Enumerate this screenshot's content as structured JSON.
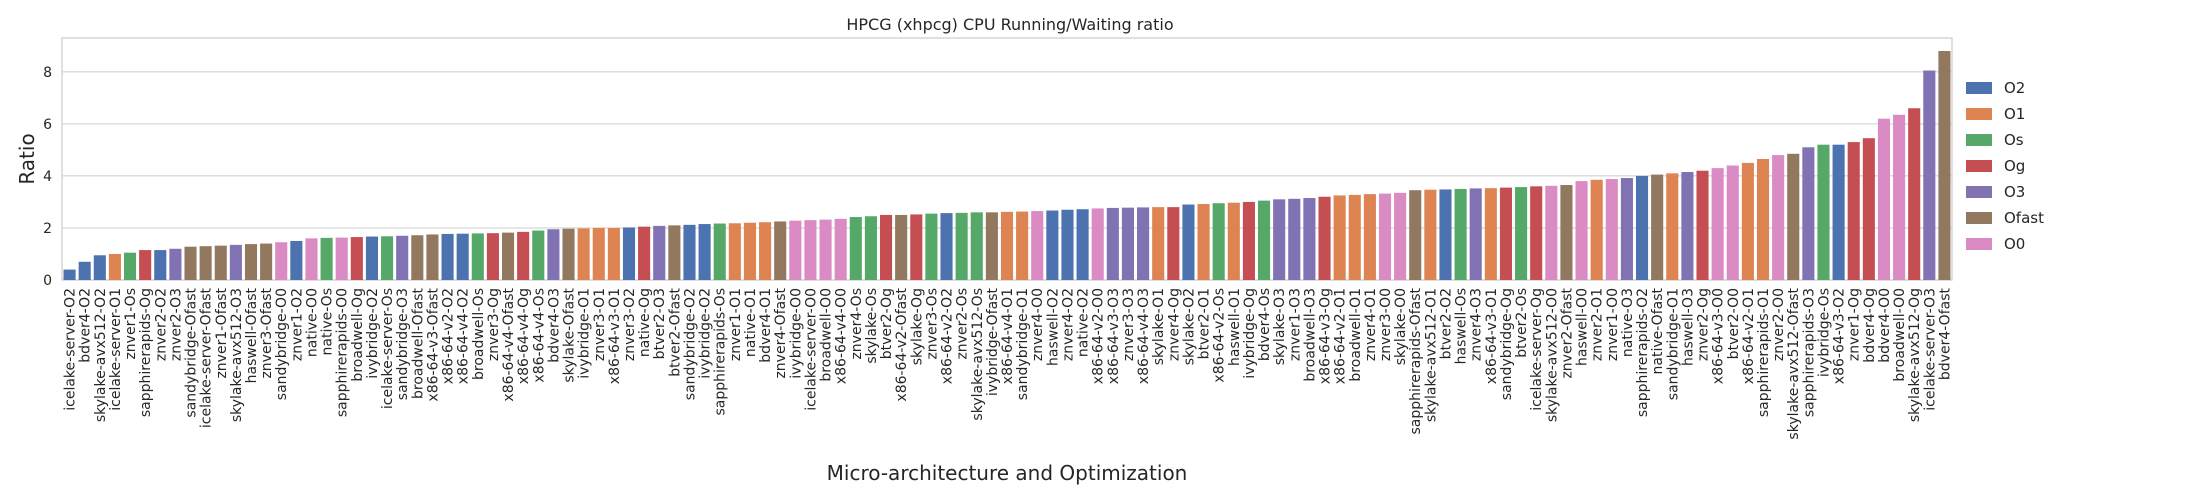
{
  "chart_data": {
    "type": "bar",
    "title": "HPCG (xhpcg) CPU Running/Waiting ratio",
    "xlabel": "Micro-architecture and Optimization",
    "ylabel": "Ratio",
    "ylim": [
      0,
      9.3
    ],
    "yticks": [
      0,
      2,
      4,
      6,
      8
    ],
    "grid": true,
    "legend_position": "right",
    "legend": [
      {
        "name": "O2",
        "color": "#4c72b0"
      },
      {
        "name": "O1",
        "color": "#dd8452"
      },
      {
        "name": "Os",
        "color": "#55a868"
      },
      {
        "name": "Og",
        "color": "#c44e52"
      },
      {
        "name": "O3",
        "color": "#8172b3"
      },
      {
        "name": "Ofast",
        "color": "#937860"
      },
      {
        "name": "O0",
        "color": "#da8bc3"
      }
    ],
    "bars": [
      {
        "label": "icelake-server-O2",
        "opt": "O2",
        "value": 0.4
      },
      {
        "label": "bdver4-O2",
        "opt": "O2",
        "value": 0.7
      },
      {
        "label": "skylake-avx512-O2",
        "opt": "O2",
        "value": 0.95
      },
      {
        "label": "icelake-server-O1",
        "opt": "O1",
        "value": 1.0
      },
      {
        "label": "znver1-Os",
        "opt": "Os",
        "value": 1.05
      },
      {
        "label": "sapphirerapids-Og",
        "opt": "Og",
        "value": 1.15
      },
      {
        "label": "znver2-O2",
        "opt": "O2",
        "value": 1.15
      },
      {
        "label": "znver2-O3",
        "opt": "O3",
        "value": 1.2
      },
      {
        "label": "sandybridge-Ofast",
        "opt": "Ofast",
        "value": 1.28
      },
      {
        "label": "icelake-server-Ofast",
        "opt": "Ofast",
        "value": 1.3
      },
      {
        "label": "znver1-Ofast",
        "opt": "Ofast",
        "value": 1.32
      },
      {
        "label": "skylake-avx512-O3",
        "opt": "O3",
        "value": 1.35
      },
      {
        "label": "haswell-Ofast",
        "opt": "Ofast",
        "value": 1.38
      },
      {
        "label": "znver3-Ofast",
        "opt": "Ofast",
        "value": 1.4
      },
      {
        "label": "sandybridge-O0",
        "opt": "O0",
        "value": 1.45
      },
      {
        "label": "znver1-O2",
        "opt": "O2",
        "value": 1.5
      },
      {
        "label": "native-O0",
        "opt": "O0",
        "value": 1.6
      },
      {
        "label": "native-Os",
        "opt": "Os",
        "value": 1.62
      },
      {
        "label": "sapphirerapids-O0",
        "opt": "O0",
        "value": 1.63
      },
      {
        "label": "broadwell-Og",
        "opt": "Og",
        "value": 1.65
      },
      {
        "label": "ivybridge-O2",
        "opt": "O2",
        "value": 1.67
      },
      {
        "label": "icelake-server-Os",
        "opt": "Os",
        "value": 1.68
      },
      {
        "label": "sandybridge-O3",
        "opt": "O3",
        "value": 1.7
      },
      {
        "label": "broadwell-Ofast",
        "opt": "Ofast",
        "value": 1.72
      },
      {
        "label": "x86-64-v3-Ofast",
        "opt": "Ofast",
        "value": 1.75
      },
      {
        "label": "x86-64-v2-O2",
        "opt": "O2",
        "value": 1.77
      },
      {
        "label": "x86-64-v4-O2",
        "opt": "O2",
        "value": 1.78
      },
      {
        "label": "broadwell-Os",
        "opt": "Os",
        "value": 1.79
      },
      {
        "label": "znver3-Og",
        "opt": "Og",
        "value": 1.8
      },
      {
        "label": "x86-64-v4-Ofast",
        "opt": "Ofast",
        "value": 1.82
      },
      {
        "label": "x86-64-v4-Og",
        "opt": "Og",
        "value": 1.85
      },
      {
        "label": "x86-64-v4-Os",
        "opt": "Os",
        "value": 1.9
      },
      {
        "label": "bdver4-O3",
        "opt": "O3",
        "value": 1.95
      },
      {
        "label": "skylake-Ofast",
        "opt": "Ofast",
        "value": 1.97
      },
      {
        "label": "ivybridge-O1",
        "opt": "O1",
        "value": 1.98
      },
      {
        "label": "znver3-O1",
        "opt": "O1",
        "value": 2.0
      },
      {
        "label": "x86-64-v3-O1",
        "opt": "O1",
        "value": 2.0
      },
      {
        "label": "znver3-O2",
        "opt": "O2",
        "value": 2.02
      },
      {
        "label": "native-Og",
        "opt": "Og",
        "value": 2.05
      },
      {
        "label": "btver2-O3",
        "opt": "O3",
        "value": 2.08
      },
      {
        "label": "btver2-Ofast",
        "opt": "Ofast",
        "value": 2.1
      },
      {
        "label": "sandybridge-O2",
        "opt": "O2",
        "value": 2.12
      },
      {
        "label": "ivybridge-O2",
        "opt": "O2",
        "value": 2.15
      },
      {
        "label": "sapphirerapids-Os",
        "opt": "Os",
        "value": 2.17
      },
      {
        "label": "znver1-O1",
        "opt": "O1",
        "value": 2.18
      },
      {
        "label": "native-O1",
        "opt": "O1",
        "value": 2.2
      },
      {
        "label": "bdver4-O1",
        "opt": "O1",
        "value": 2.22
      },
      {
        "label": "znver4-Ofast",
        "opt": "Ofast",
        "value": 2.25
      },
      {
        "label": "ivybridge-O0",
        "opt": "O0",
        "value": 2.28
      },
      {
        "label": "icelake-server-O0",
        "opt": "O0",
        "value": 2.3
      },
      {
        "label": "broadwell-O0",
        "opt": "O0",
        "value": 2.32
      },
      {
        "label": "x86-64-v4-O0",
        "opt": "O0",
        "value": 2.35
      },
      {
        "label": "znver4-Os",
        "opt": "Os",
        "value": 2.42
      },
      {
        "label": "skylake-Os",
        "opt": "Os",
        "value": 2.45
      },
      {
        "label": "btver2-Og",
        "opt": "Og",
        "value": 2.5
      },
      {
        "label": "x86-64-v2-Ofast",
        "opt": "Ofast",
        "value": 2.5
      },
      {
        "label": "skylake-Og",
        "opt": "Og",
        "value": 2.52
      },
      {
        "label": "znver3-Os",
        "opt": "Os",
        "value": 2.55
      },
      {
        "label": "x86-64-v2-O2",
        "opt": "O2",
        "value": 2.57
      },
      {
        "label": "znver2-Os",
        "opt": "Os",
        "value": 2.58
      },
      {
        "label": "skylake-avx512-Os",
        "opt": "Os",
        "value": 2.6
      },
      {
        "label": "ivybridge-Ofast",
        "opt": "Ofast",
        "value": 2.6
      },
      {
        "label": "x86-64-v4-O1",
        "opt": "O1",
        "value": 2.62
      },
      {
        "label": "sandybridge-O1",
        "opt": "O1",
        "value": 2.63
      },
      {
        "label": "znver4-O0",
        "opt": "O0",
        "value": 2.65
      },
      {
        "label": "haswell-O2",
        "opt": "O2",
        "value": 2.67
      },
      {
        "label": "znver4-O2",
        "opt": "O2",
        "value": 2.7
      },
      {
        "label": "native-O2",
        "opt": "O2",
        "value": 2.72
      },
      {
        "label": "x86-64-v2-O0",
        "opt": "O0",
        "value": 2.75
      },
      {
        "label": "x86-64-v3-O3",
        "opt": "O3",
        "value": 2.77
      },
      {
        "label": "znver3-O3",
        "opt": "O3",
        "value": 2.78
      },
      {
        "label": "x86-64-v4-O3",
        "opt": "O3",
        "value": 2.79
      },
      {
        "label": "skylake-O1",
        "opt": "O1",
        "value": 2.8
      },
      {
        "label": "znver4-Og",
        "opt": "Og",
        "value": 2.8
      },
      {
        "label": "skylake-O2",
        "opt": "O2",
        "value": 2.9
      },
      {
        "label": "btver2-O1",
        "opt": "O1",
        "value": 2.92
      },
      {
        "label": "x86-64-v2-Os",
        "opt": "Os",
        "value": 2.95
      },
      {
        "label": "haswell-O1",
        "opt": "O1",
        "value": 2.97
      },
      {
        "label": "ivybridge-Og",
        "opt": "Og",
        "value": 3.0
      },
      {
        "label": "bdver4-Os",
        "opt": "Os",
        "value": 3.05
      },
      {
        "label": "skylake-O3",
        "opt": "O3",
        "value": 3.1
      },
      {
        "label": "znver1-O3",
        "opt": "O3",
        "value": 3.12
      },
      {
        "label": "broadwell-O3",
        "opt": "O3",
        "value": 3.15
      },
      {
        "label": "x86-64-v3-Og",
        "opt": "Og",
        "value": 3.2
      },
      {
        "label": "x86-64-v2-O1",
        "opt": "O1",
        "value": 3.25
      },
      {
        "label": "broadwell-O1",
        "opt": "O1",
        "value": 3.27
      },
      {
        "label": "znver4-O1",
        "opt": "O1",
        "value": 3.3
      },
      {
        "label": "znver3-O0",
        "opt": "O0",
        "value": 3.32
      },
      {
        "label": "skylake-O0",
        "opt": "O0",
        "value": 3.35
      },
      {
        "label": "sapphirerapids-Ofast",
        "opt": "Ofast",
        "value": 3.45
      },
      {
        "label": "skylake-avx512-O1",
        "opt": "O1",
        "value": 3.47
      },
      {
        "label": "btver2-O2",
        "opt": "O2",
        "value": 3.48
      },
      {
        "label": "haswell-Os",
        "opt": "Os",
        "value": 3.5
      },
      {
        "label": "znver4-O3",
        "opt": "O3",
        "value": 3.52
      },
      {
        "label": "x86-64-v3-O1",
        "opt": "O1",
        "value": 3.53
      },
      {
        "label": "sandybridge-Og",
        "opt": "Og",
        "value": 3.55
      },
      {
        "label": "btver2-Os",
        "opt": "Os",
        "value": 3.57
      },
      {
        "label": "icelake-server-Og",
        "opt": "Og",
        "value": 3.6
      },
      {
        "label": "skylake-avx512-O0",
        "opt": "O0",
        "value": 3.62
      },
      {
        "label": "znver2-Ofast",
        "opt": "Ofast",
        "value": 3.65
      },
      {
        "label": "haswell-O0",
        "opt": "O0",
        "value": 3.8
      },
      {
        "label": "znver2-O1",
        "opt": "O1",
        "value": 3.85
      },
      {
        "label": "znver1-O0",
        "opt": "O0",
        "value": 3.88
      },
      {
        "label": "native-O3",
        "opt": "O3",
        "value": 3.92
      },
      {
        "label": "sapphirerapids-O2",
        "opt": "O2",
        "value": 4.0
      },
      {
        "label": "native-Ofast",
        "opt": "Ofast",
        "value": 4.05
      },
      {
        "label": "sandybridge-O1",
        "opt": "O1",
        "value": 4.1
      },
      {
        "label": "haswell-O3",
        "opt": "O3",
        "value": 4.15
      },
      {
        "label": "znver2-Og",
        "opt": "Og",
        "value": 4.2
      },
      {
        "label": "x86-64-v3-O0",
        "opt": "O0",
        "value": 4.3
      },
      {
        "label": "btver2-O0",
        "opt": "O0",
        "value": 4.4
      },
      {
        "label": "x86-64-v2-O1",
        "opt": "O1",
        "value": 4.5
      },
      {
        "label": "sapphirerapids-O1",
        "opt": "O1",
        "value": 4.65
      },
      {
        "label": "znver2-O0",
        "opt": "O0",
        "value": 4.8
      },
      {
        "label": "skylake-avx512-Ofast",
        "opt": "Ofast",
        "value": 4.85
      },
      {
        "label": "sapphirerapids-O3",
        "opt": "O3",
        "value": 5.1
      },
      {
        "label": "ivybridge-Os",
        "opt": "Os",
        "value": 5.2
      },
      {
        "label": "x86-64-v3-O2",
        "opt": "O2",
        "value": 5.2
      },
      {
        "label": "znver1-Og",
        "opt": "Og",
        "value": 5.3
      },
      {
        "label": "bdver4-Og",
        "opt": "Og",
        "value": 5.45
      },
      {
        "label": "bdver4-O0",
        "opt": "O0",
        "value": 6.2
      },
      {
        "label": "broadwell-O0",
        "opt": "O0",
        "value": 6.35
      },
      {
        "label": "skylake-avx512-Og",
        "opt": "Og",
        "value": 6.6
      },
      {
        "label": "icelake-server-O3",
        "opt": "O3",
        "value": 8.05
      },
      {
        "label": "bdver4-Ofast",
        "opt": "Ofast",
        "value": 8.8
      }
    ]
  }
}
